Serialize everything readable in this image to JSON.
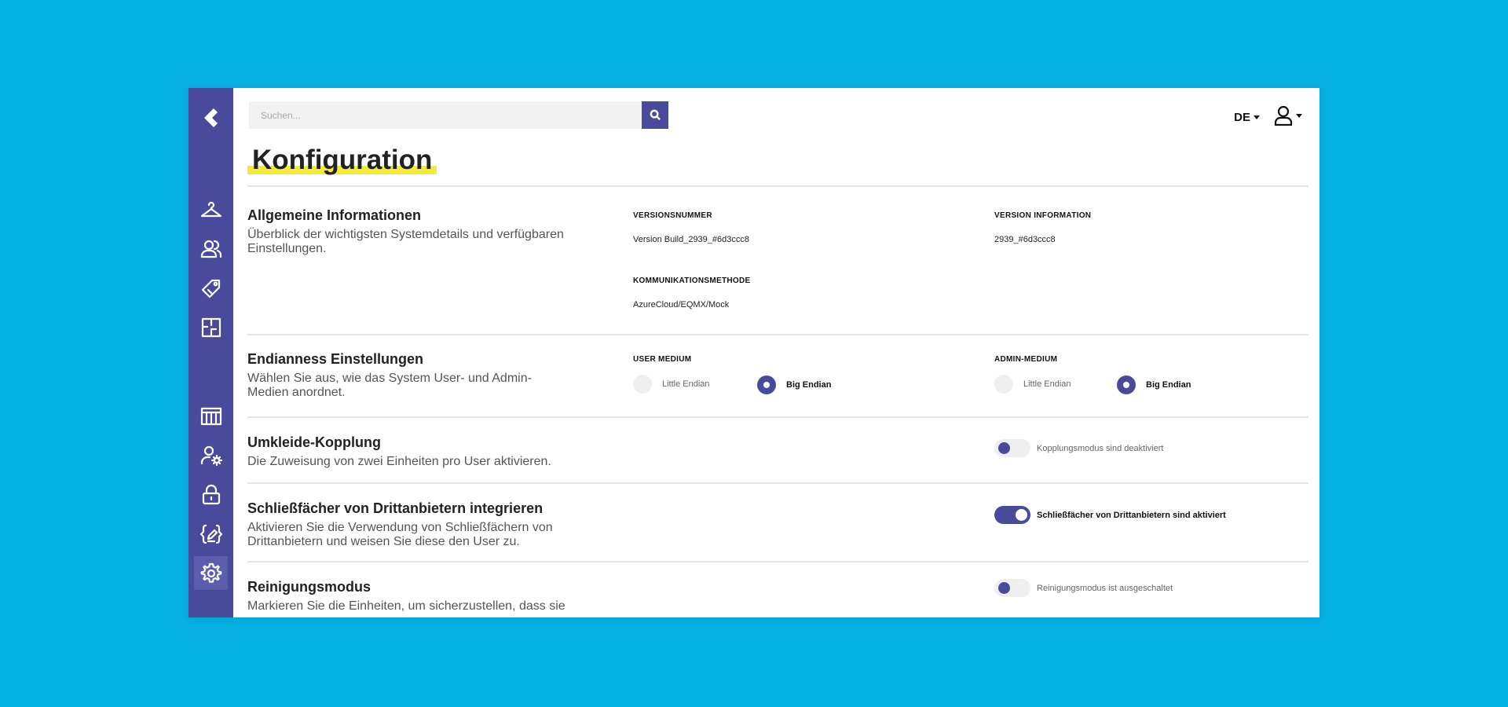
{
  "search": {
    "placeholder": "Suchen..."
  },
  "header": {
    "language": "DE"
  },
  "page": {
    "title": "Konfiguration"
  },
  "sections": {
    "general": {
      "title": "Allgemeine Informationen",
      "description": "Überblick der wichtigsten Systemdetails und verfügbaren Einstellungen.",
      "version_label": "VERSIONSNUMMER",
      "version_value": "Version Build_2939_#6d3ccc8",
      "version_info_label": "VERSION INFORMATION",
      "version_info_value": "2939_#6d3ccc8",
      "comm_label": "KOMMUNIKATIONSMETHODE",
      "comm_value": "AzureCloud/EQMX/Mock"
    },
    "endianness": {
      "title": "Endianness Einstellungen",
      "description": "Wählen Sie aus, wie das System User- und Admin-Medien anordnet.",
      "user_label": "USER MEDIUM",
      "admin_label": "ADMIN-MEDIUM",
      "option_little": "Little Endian",
      "option_big": "Big Endian",
      "user_selected": "Big Endian",
      "admin_selected": "Big Endian"
    },
    "coupling": {
      "title": "Umkleide-Kopplung",
      "description": "Die Zuweisung von zwei Einheiten pro User aktivieren.",
      "status": "Kopplungsmodus sind deaktiviert",
      "enabled": false
    },
    "lockers": {
      "title": "Schließfächer von Drittanbietern integrieren",
      "description": "Aktivieren Sie die Verwendung von Schließfächern von Drittanbietern und weisen Sie diese den User zu.",
      "status": "Schließfächer von Drittanbietern sind aktiviert",
      "enabled": true
    },
    "cleaning": {
      "title": "Reinigungsmodus",
      "description": "Markieren Sie die Einheiten, um sicherzustellen, dass sie",
      "status": "Reinigungsmodus ist ausgeschaltet",
      "enabled": false
    }
  },
  "sidebar": {
    "icons": [
      "back-logo-icon",
      "hanger-icon",
      "users-icon",
      "tag-icon",
      "floorplan-icon",
      "lockers-icon",
      "user-settings-icon",
      "lock-icon",
      "code-edit-icon",
      "gear-icon"
    ],
    "active": "gear-icon"
  },
  "colors": {
    "background": "#05b0e2",
    "sidebar": "#4a4a9d",
    "accent": "#4a4a9d",
    "highlight": "#f4ea3a"
  }
}
